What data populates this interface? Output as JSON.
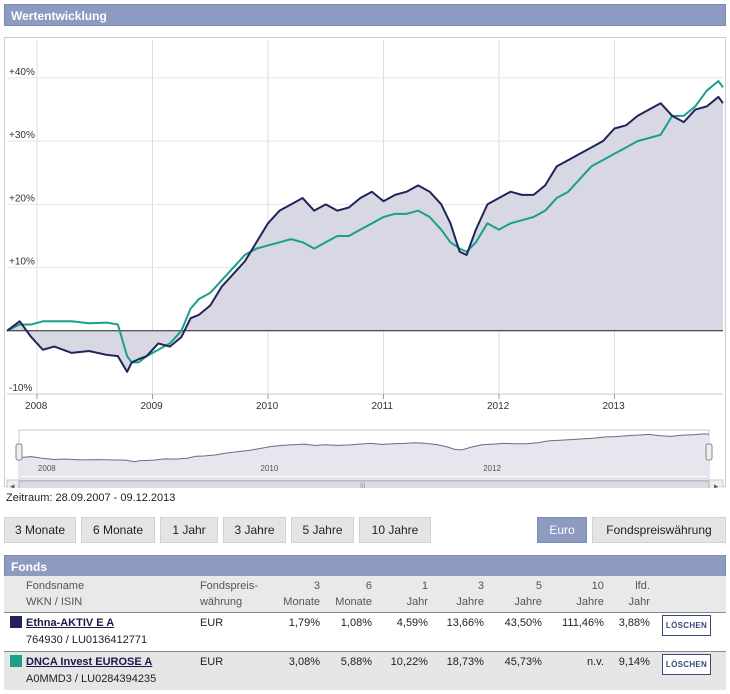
{
  "panel_title": "Wertentwicklung",
  "range_label": "Zeitraum: 28.09.2007 - 09.12.2013",
  "period_buttons": [
    "3 Monate",
    "6 Monate",
    "1 Jahr",
    "3 Jahre",
    "5 Jahre",
    "10 Jahre"
  ],
  "currency_buttons": [
    "Euro",
    "Fondspreiswährung"
  ],
  "funds_title": "Fonds",
  "table_headers": {
    "name1": "Fondsname",
    "name2": "WKN / ISIN",
    "cur1": "Fondspreis-",
    "cur2": "währung",
    "m3a": "3",
    "m3b": "Monate",
    "m6a": "6",
    "m6b": "Monate",
    "y1a": "1",
    "y1b": "Jahr",
    "y3a": "3",
    "y3b": "Jahre",
    "y5a": "5",
    "y5b": "Jahre",
    "y10a": "10",
    "y10b": "Jahre",
    "ytda": "lfd.",
    "ytdb": "Jahr"
  },
  "funds": [
    {
      "name": "Ethna-AKTIV E A",
      "id": "764930 / LU0136412771",
      "currency": "EUR",
      "m3": "1,79%",
      "m6": "1,08%",
      "y1": "4,59%",
      "y3": "13,66%",
      "y5": "43,50%",
      "y10": "111,46%",
      "ytd": "3,88%",
      "color": "#23235c",
      "delete": "LÖSCHEN"
    },
    {
      "name": "DNCA Invest EUROSE A",
      "id": "A0MMD3 / LU0284394235",
      "currency": "EUR",
      "m3": "3,08%",
      "m6": "5,88%",
      "y1": "10,22%",
      "y3": "18,73%",
      "y5": "45,73%",
      "y10": "n.v.",
      "ytd": "9,14%",
      "color": "#1aa086",
      "delete": "LÖSCHEN"
    }
  ],
  "navigator_labels": [
    "2008",
    "2010",
    "2012"
  ],
  "chart_data": {
    "type": "line",
    "y_unit": "%",
    "ylim": [
      -10,
      46
    ],
    "y_ticks": [
      "-10%",
      "+10%",
      "+20%",
      "+30%",
      "+40%"
    ],
    "x_ticks": [
      "2008",
      "2009",
      "2010",
      "2011",
      "2012",
      "2013"
    ],
    "xlim": [
      2007.74,
      2013.94
    ],
    "series": [
      {
        "name": "Ethna-AKTIV E A",
        "color": "#23235c",
        "filled": true,
        "x": [
          2007.74,
          2007.85,
          2007.95,
          2008.05,
          2008.15,
          2008.3,
          2008.45,
          2008.6,
          2008.7,
          2008.78,
          2008.82,
          2008.88,
          2008.95,
          2009.05,
          2009.15,
          2009.25,
          2009.33,
          2009.4,
          2009.5,
          2009.6,
          2009.7,
          2009.8,
          2009.9,
          2010.0,
          2010.1,
          2010.2,
          2010.3,
          2010.4,
          2010.5,
          2010.6,
          2010.7,
          2010.8,
          2010.9,
          2011.0,
          2011.1,
          2011.2,
          2011.3,
          2011.4,
          2011.5,
          2011.58,
          2011.66,
          2011.72,
          2011.8,
          2011.9,
          2012.0,
          2012.1,
          2012.2,
          2012.3,
          2012.4,
          2012.5,
          2012.6,
          2012.7,
          2012.8,
          2012.9,
          2013.0,
          2013.1,
          2013.2,
          2013.3,
          2013.4,
          2013.5,
          2013.6,
          2013.7,
          2013.8,
          2013.9,
          2013.94
        ],
        "y": [
          0,
          1.5,
          -1,
          -3,
          -2.5,
          -3.5,
          -3.2,
          -3.8,
          -4,
          -6.5,
          -5,
          -4.5,
          -4,
          -2,
          -2.5,
          -1,
          2,
          2.5,
          4,
          7,
          9,
          11,
          14,
          17,
          19,
          20,
          21,
          19,
          20,
          19,
          19.5,
          21,
          22,
          20.5,
          21.5,
          22,
          23,
          22,
          20,
          17,
          12.5,
          12,
          16,
          20,
          21,
          22,
          21.5,
          21.5,
          23,
          26,
          27,
          28,
          29,
          30,
          32,
          32.5,
          34,
          35,
          36,
          34,
          33,
          35,
          35.5,
          37,
          36
        ]
      },
      {
        "name": "DNCA Invest EUROSE A",
        "color": "#1aa086",
        "filled": false,
        "x": [
          2007.74,
          2007.85,
          2007.95,
          2008.05,
          2008.15,
          2008.3,
          2008.45,
          2008.6,
          2008.7,
          2008.78,
          2008.82,
          2008.88,
          2008.95,
          2009.05,
          2009.15,
          2009.25,
          2009.33,
          2009.4,
          2009.5,
          2009.6,
          2009.7,
          2009.8,
          2009.9,
          2010.0,
          2010.1,
          2010.2,
          2010.3,
          2010.4,
          2010.5,
          2010.6,
          2010.7,
          2010.8,
          2010.9,
          2011.0,
          2011.1,
          2011.2,
          2011.3,
          2011.4,
          2011.5,
          2011.58,
          2011.66,
          2011.72,
          2011.8,
          2011.9,
          2012.0,
          2012.1,
          2012.2,
          2012.3,
          2012.4,
          2012.5,
          2012.6,
          2012.7,
          2012.8,
          2012.9,
          2013.0,
          2013.1,
          2013.2,
          2013.3,
          2013.4,
          2013.5,
          2013.6,
          2013.7,
          2013.8,
          2013.9,
          2013.94
        ],
        "y": [
          0,
          1,
          1,
          1.5,
          1.5,
          1.5,
          1.2,
          1.3,
          1,
          -4,
          -5,
          -5,
          -4,
          -3,
          -2,
          0,
          3.5,
          5,
          6,
          8,
          10,
          12,
          13,
          13.5,
          14,
          14.5,
          14,
          13,
          14,
          15,
          15,
          16,
          17,
          18,
          18.5,
          18.5,
          19,
          18,
          16,
          14,
          13,
          12.5,
          14,
          17,
          16,
          17,
          17.5,
          18,
          19,
          21,
          22,
          24,
          26,
          27,
          28,
          29,
          30,
          30.5,
          31,
          34,
          34,
          35.5,
          38,
          39.5,
          38.5
        ]
      }
    ]
  }
}
